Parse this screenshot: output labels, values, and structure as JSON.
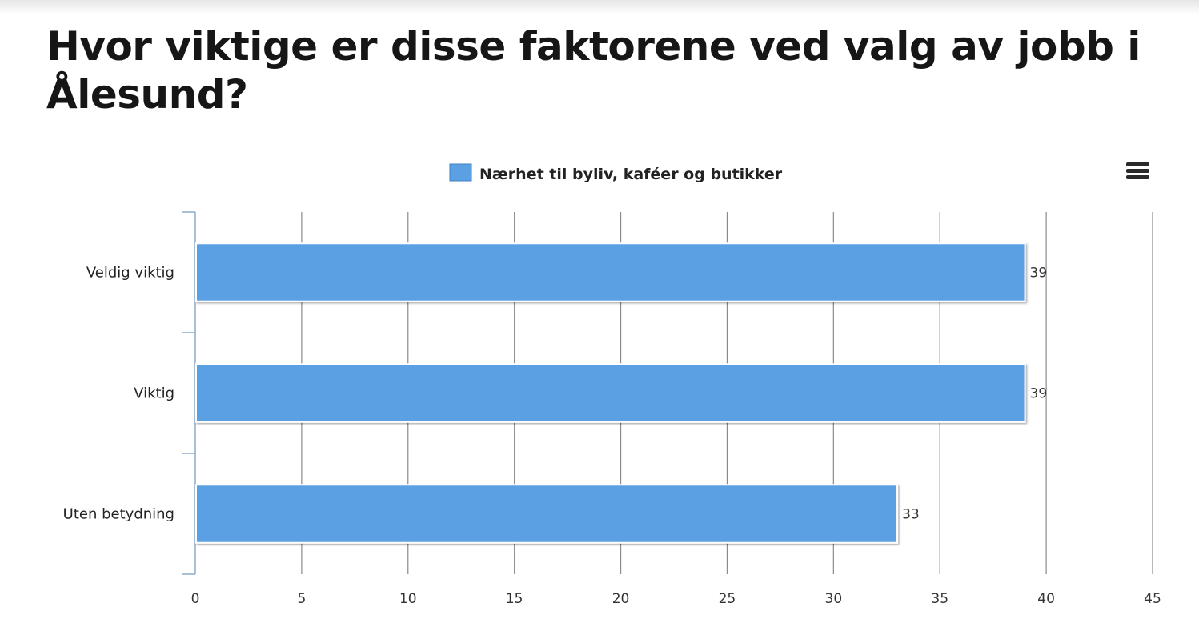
{
  "page": {
    "title": "Hvor viktige er disse faktorene ved valg av jobb i Ålesund?"
  },
  "menu": {
    "icon": "hamburger-menu-icon"
  },
  "chart_data": {
    "type": "bar",
    "orientation": "horizontal",
    "categories": [
      "Veldig viktig",
      "Viktig",
      "Uten betydning"
    ],
    "series": [
      {
        "name": "Nærhet til byliv, kaféer og butikker",
        "values": [
          39,
          39,
          33
        ],
        "color": "#5ca0e4"
      }
    ],
    "data_labels": [
      "39",
      "39",
      "33"
    ],
    "x_ticks": [
      "0",
      "5",
      "10",
      "15",
      "20",
      "25",
      "30",
      "35",
      "40",
      "45"
    ],
    "xlim": [
      0,
      45
    ],
    "grid": true,
    "legend_position": "top-center"
  }
}
